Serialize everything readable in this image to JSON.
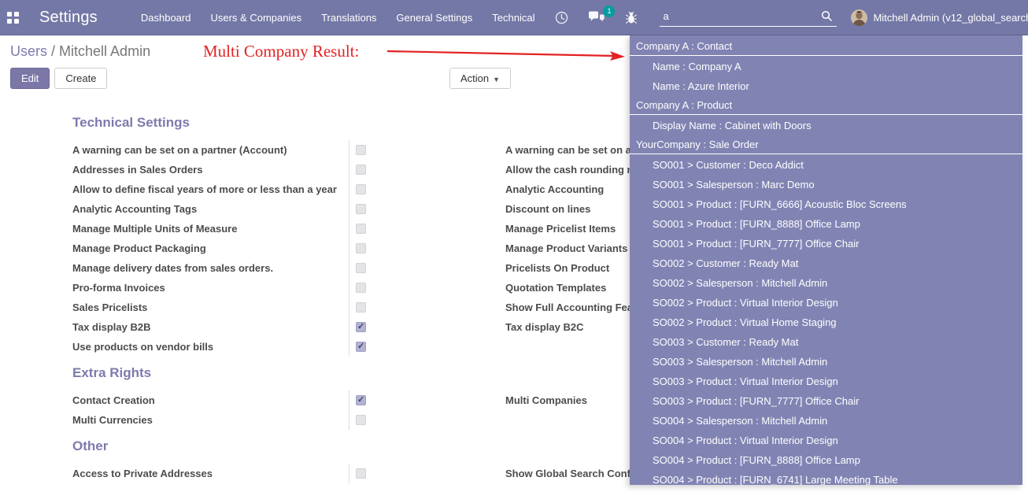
{
  "navbar": {
    "app_title": "Settings",
    "menu_items": [
      "Dashboard",
      "Users & Companies",
      "Translations",
      "General Settings",
      "Technical"
    ],
    "message_badge_count": "1",
    "search": {
      "value": "a"
    },
    "user_menu_label": "Mitchell Admin (v12_global_search)"
  },
  "breadcrumb": {
    "parent": "Users",
    "separator": " / ",
    "current": "Mitchell Admin"
  },
  "buttons": {
    "edit": "Edit",
    "create": "Create",
    "action": "Action"
  },
  "annotation": {
    "text": "Multi Company Result:",
    "color": "#e32222"
  },
  "settings_form": {
    "sections": [
      {
        "title": "Technical Settings",
        "rows": [
          {
            "left": {
              "label": "A warning can be set on a partner (Account)",
              "checked": false
            },
            "right": {
              "label": "A warning can be set on a",
              "checked": false
            }
          },
          {
            "left": {
              "label": "Addresses in Sales Orders",
              "checked": false
            },
            "right": {
              "label": "Allow the cash rounding m",
              "checked": false
            }
          },
          {
            "left": {
              "label": "Allow to define fiscal years of more or less than a year",
              "checked": false
            },
            "right": {
              "label": "Analytic Accounting",
              "checked": false
            }
          },
          {
            "left": {
              "label": "Analytic Accounting Tags",
              "checked": false
            },
            "right": {
              "label": "Discount on lines",
              "checked": false
            }
          },
          {
            "left": {
              "label": "Manage Multiple Units of Measure",
              "checked": false
            },
            "right": {
              "label": "Manage Pricelist Items",
              "checked": false
            }
          },
          {
            "left": {
              "label": "Manage Product Packaging",
              "checked": false
            },
            "right": {
              "label": "Manage Product Variants",
              "checked": false
            }
          },
          {
            "left": {
              "label": "Manage delivery dates from sales orders.",
              "checked": false
            },
            "right": {
              "label": "Pricelists On Product",
              "checked": false
            }
          },
          {
            "left": {
              "label": "Pro-forma Invoices",
              "checked": false
            },
            "right": {
              "label": "Quotation Templates",
              "checked": false
            }
          },
          {
            "left": {
              "label": "Sales Pricelists",
              "checked": false
            },
            "right": {
              "label": "Show Full Accounting Fea",
              "checked": false
            }
          },
          {
            "left": {
              "label": "Tax display B2B",
              "checked": true
            },
            "right": {
              "label": "Tax display B2C",
              "checked": false
            }
          },
          {
            "left": {
              "label": "Use products on vendor bills",
              "checked": true
            },
            "right": null
          }
        ]
      },
      {
        "title": "Extra Rights",
        "rows": [
          {
            "left": {
              "label": "Contact Creation",
              "checked": true
            },
            "right": {
              "label": "Multi Companies",
              "checked": false
            }
          },
          {
            "left": {
              "label": "Multi Currencies",
              "checked": false
            },
            "right": null
          }
        ]
      },
      {
        "title": "Other",
        "rows": [
          {
            "left": {
              "label": "Access to Private Addresses",
              "checked": false
            },
            "right": {
              "label": "Show Global Search Conf",
              "checked": false
            }
          }
        ]
      }
    ]
  },
  "search_dropdown": {
    "entries": [
      {
        "type": "header",
        "text": "Company A : Contact"
      },
      {
        "type": "item",
        "text": "Name : Company A"
      },
      {
        "type": "item",
        "text": "Name : Azure Interior"
      },
      {
        "type": "header",
        "text": "Company A : Product"
      },
      {
        "type": "item",
        "text": "Display Name : Cabinet with Doors"
      },
      {
        "type": "header",
        "text": "YourCompany : Sale Order"
      },
      {
        "type": "item",
        "text": "SO001 > Customer : Deco Addict"
      },
      {
        "type": "item",
        "text": "SO001 > Salesperson : Marc Demo"
      },
      {
        "type": "item",
        "text": "SO001 > Product : [FURN_6666] Acoustic Bloc Screens"
      },
      {
        "type": "item",
        "text": "SO001 > Product : [FURN_8888] Office Lamp"
      },
      {
        "type": "item",
        "text": "SO001 > Product : [FURN_7777] Office Chair"
      },
      {
        "type": "item",
        "text": "SO002 > Customer : Ready Mat"
      },
      {
        "type": "item",
        "text": "SO002 > Salesperson : Mitchell Admin"
      },
      {
        "type": "item",
        "text": "SO002 > Product : Virtual Interior Design"
      },
      {
        "type": "item",
        "text": "SO002 > Product : Virtual Home Staging"
      },
      {
        "type": "item",
        "text": "SO003 > Customer : Ready Mat"
      },
      {
        "type": "item",
        "text": "SO003 > Salesperson : Mitchell Admin"
      },
      {
        "type": "item",
        "text": "SO003 > Product : Virtual Interior Design"
      },
      {
        "type": "item",
        "text": "SO003 > Product : [FURN_7777] Office Chair"
      },
      {
        "type": "item",
        "text": "SO004 > Salesperson : Mitchell Admin"
      },
      {
        "type": "item",
        "text": "SO004 > Product : Virtual Interior Design"
      },
      {
        "type": "item",
        "text": "SO004 > Product : [FURN_8888] Office Lamp"
      },
      {
        "type": "item",
        "text": "SO004 > Product : [FURN_6741] Large Meeting Table"
      }
    ]
  },
  "colors": {
    "navbar_bg": "#7478a6",
    "dropdown_bg": "#8184b3",
    "accent": "#7c7bad",
    "badge_teal": "#00a09d",
    "annotation_red": "#e32222",
    "checked_checkbox": "#b2b2d2"
  }
}
